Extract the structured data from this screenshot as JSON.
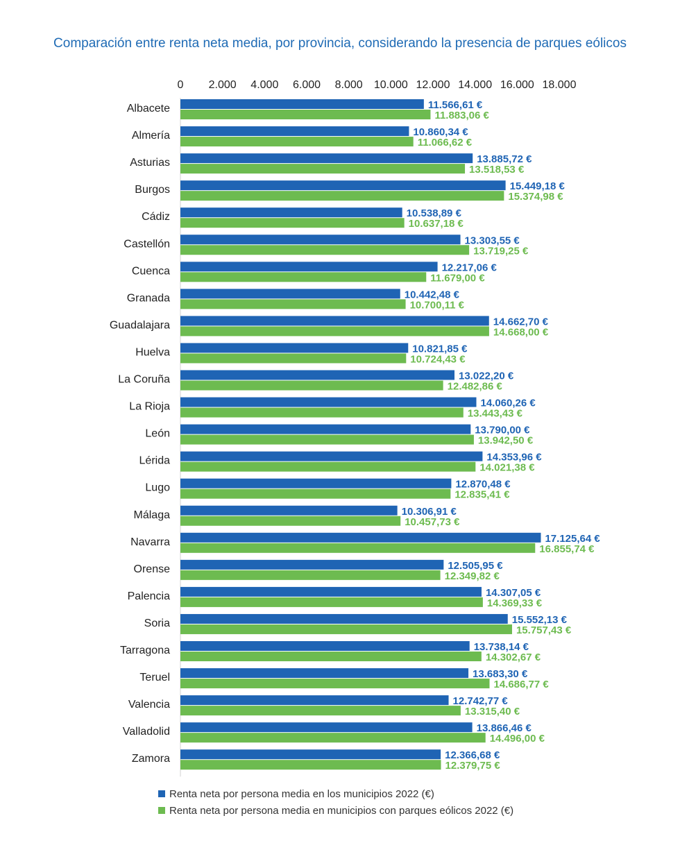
{
  "chart_data": {
    "type": "bar",
    "orientation": "horizontal",
    "title": "Comparación entre renta neta media, por provincia, considerando la presencia de parques eólicos",
    "xlim": [
      0,
      18000
    ],
    "ticks": [
      0,
      2000,
      4000,
      6000,
      8000,
      10000,
      12000,
      14000,
      16000,
      18000
    ],
    "tick_labels": [
      "0",
      "2.000",
      "4.000",
      "6.000",
      "8.000",
      "10.000",
      "12.000",
      "14.000",
      "16.000",
      "18.000"
    ],
    "grid": false,
    "legend_position": "bottom",
    "categories": [
      "Albacete",
      "Almería",
      "Asturias",
      "Burgos",
      "Cádiz",
      "Castellón",
      "Cuenca",
      "Granada",
      "Guadalajara",
      "Huelva",
      "La Coruña",
      "La Rioja",
      "León",
      "Lérida",
      "Lugo",
      "Málaga",
      "Navarra",
      "Orense",
      "Palencia",
      "Soria",
      "Tarragona",
      "Teruel",
      "Valencia",
      "Valladolid",
      "Zamora"
    ],
    "series": [
      {
        "name": "Renta neta por persona media en los municipios 2022 (€)",
        "color": "#1f64b4",
        "values": [
          11566.61,
          10860.34,
          13885.72,
          15449.18,
          10538.89,
          13303.55,
          12217.06,
          10442.48,
          14662.7,
          10821.85,
          13022.2,
          14060.26,
          13790.0,
          14353.96,
          12870.48,
          10306.91,
          17125.64,
          12505.95,
          14307.05,
          15552.13,
          13738.14,
          13683.3,
          12742.77,
          13866.46,
          12366.68
        ],
        "labels": [
          "11.566,61 €",
          "10.860,34 €",
          "13.885,72 €",
          "15.449,18 €",
          "10.538,89 €",
          "13.303,55 €",
          "12.217,06 €",
          "10.442,48 €",
          "14.662,70 €",
          "10.821,85 €",
          "13.022,20 €",
          "14.060,26 €",
          "13.790,00 €",
          "14.353,96 €",
          "12.870,48 €",
          "10.306,91 €",
          "17.125,64 €",
          "12.505,95 €",
          "14.307,05 €",
          "15.552,13 €",
          "13.738,14 €",
          "13.683,30 €",
          "12.742,77 €",
          "13.866,46 €",
          "12.366,68 €"
        ]
      },
      {
        "name": "Renta neta por persona media en municipios con parques eólicos 2022 (€)",
        "color": "#6dbb50",
        "values": [
          11883.06,
          11066.62,
          13518.53,
          15374.98,
          10637.18,
          13719.25,
          11679.0,
          10700.11,
          14668.0,
          10724.43,
          12482.86,
          13443.43,
          13942.5,
          14021.38,
          12835.41,
          10457.73,
          16855.74,
          12349.82,
          14369.33,
          15757.43,
          14302.67,
          14686.77,
          13315.4,
          14496.0,
          12379.75
        ],
        "labels": [
          "11.883,06 €",
          "11.066,62 €",
          "13.518,53 €",
          "15.374,98 €",
          "10.637,18 €",
          "13.719,25 €",
          "11.679,00 €",
          "10.700,11 €",
          "14.668,00 €",
          "10.724,43 €",
          "12.482,86 €",
          "13.443,43 €",
          "13.942,50 €",
          "14.021,38 €",
          "12.835,41 €",
          "10.457,73 €",
          "16.855,74 €",
          "12.349,82 €",
          "14.369,33 €",
          "15.757,43 €",
          "14.302,67 €",
          "14.686,77 €",
          "13.315,40 €",
          "14.496,00 €",
          "12.379,75 €"
        ]
      }
    ]
  }
}
